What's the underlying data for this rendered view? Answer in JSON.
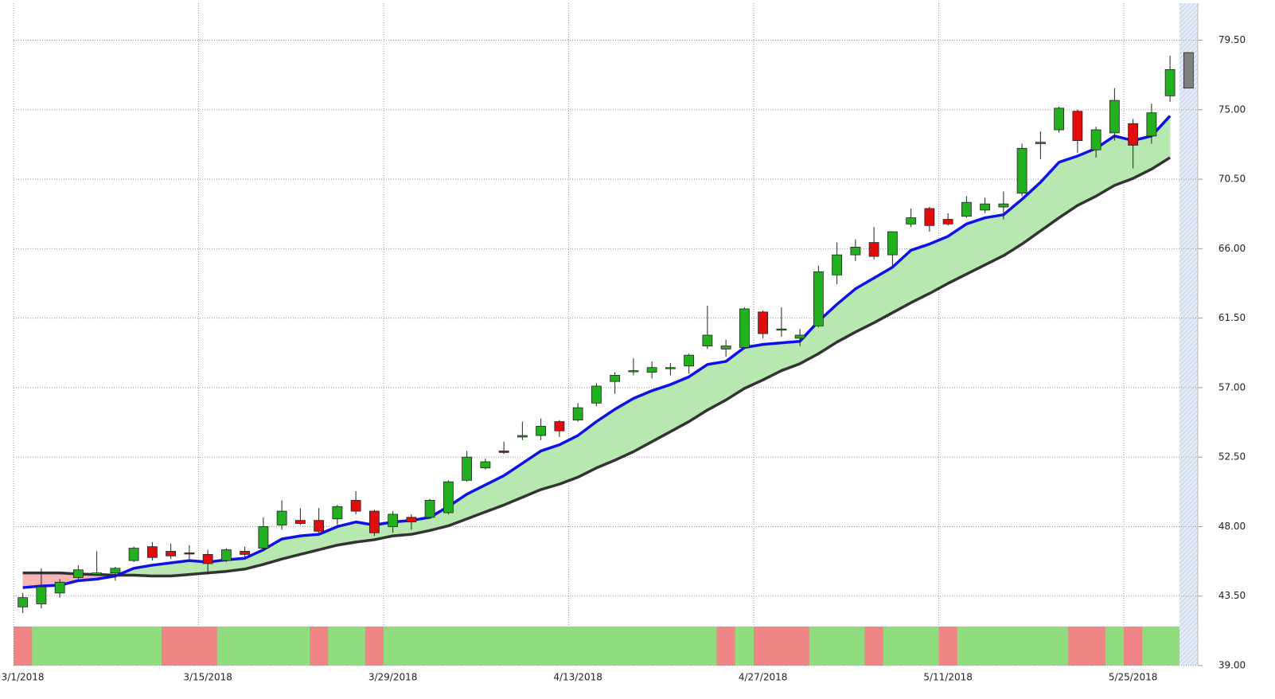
{
  "chart_data": {
    "type": "candlestick",
    "categories": [
      "3/1/2018",
      null,
      null,
      null,
      null,
      null,
      null,
      null,
      null,
      null,
      "3/15/2018",
      null,
      null,
      null,
      null,
      null,
      null,
      null,
      null,
      null,
      "3/29/2018",
      null,
      null,
      null,
      null,
      null,
      null,
      null,
      null,
      null,
      "4/13/2018",
      null,
      null,
      null,
      null,
      null,
      null,
      null,
      null,
      null,
      "4/27/2018",
      null,
      null,
      null,
      null,
      null,
      null,
      null,
      null,
      null,
      "5/11/2018",
      null,
      null,
      null,
      null,
      null,
      null,
      null,
      null,
      null,
      "5/25/2018",
      null,
      null
    ],
    "open": [
      42.8,
      43.0,
      43.7,
      44.7,
      44.9,
      45.0,
      45.8,
      46.7,
      46.4,
      46.3,
      46.2,
      45.8,
      46.4,
      46.6,
      48.1,
      48.4,
      48.4,
      48.5,
      49.7,
      49.0,
      48.0,
      48.6,
      48.6,
      48.9,
      51.0,
      51.8,
      52.9,
      53.8,
      53.9,
      54.8,
      54.9,
      56.0,
      57.4,
      58.05,
      58.0,
      58.3,
      58.4,
      59.7,
      59.5,
      59.6,
      61.9,
      60.8,
      60.2,
      61.0,
      64.3,
      65.6,
      66.4,
      65.6,
      67.6,
      68.6,
      67.9,
      68.1,
      68.5,
      68.7,
      69.6,
      72.8,
      73.7,
      74.9,
      72.4,
      73.5,
      74.1,
      73.3,
      75.9
    ],
    "high": [
      43.7,
      45.3,
      44.6,
      45.5,
      46.4,
      45.4,
      46.7,
      47.0,
      46.9,
      46.8,
      46.5,
      46.6,
      46.7,
      48.6,
      49.7,
      49.2,
      49.2,
      49.4,
      50.3,
      49.1,
      49.0,
      48.8,
      49.8,
      51.0,
      52.9,
      52.4,
      53.5,
      54.8,
      55.0,
      54.9,
      56.0,
      57.3,
      58.0,
      58.9,
      58.7,
      58.6,
      59.2,
      62.3,
      60.1,
      62.2,
      62.0,
      62.2,
      60.8,
      64.9,
      66.4,
      66.6,
      67.4,
      67.1,
      68.6,
      68.7,
      68.3,
      69.4,
      69.3,
      69.7,
      72.8,
      73.6,
      75.2,
      75.0,
      73.9,
      76.4,
      74.4,
      75.4,
      78.5
    ],
    "low": [
      42.4,
      42.7,
      43.4,
      44.6,
      44.8,
      44.5,
      45.7,
      45.8,
      45.9,
      45.9,
      44.9,
      45.7,
      46.0,
      46.4,
      47.8,
      48.1,
      47.6,
      48.1,
      48.8,
      47.4,
      47.6,
      47.8,
      48.5,
      48.8,
      50.9,
      51.7,
      52.7,
      53.6,
      53.6,
      53.8,
      54.8,
      55.8,
      56.6,
      57.8,
      57.6,
      57.8,
      57.9,
      59.5,
      59.0,
      59.5,
      60.2,
      60.3,
      59.7,
      60.9,
      63.7,
      65.2,
      65.3,
      64.9,
      67.4,
      67.1,
      67.5,
      68.0,
      68.3,
      67.9,
      69.4,
      71.8,
      73.5,
      72.2,
      71.9,
      73.0,
      71.2,
      72.8,
      75.5
    ],
    "close": [
      43.4,
      44.1,
      44.4,
      45.2,
      45.0,
      45.3,
      46.6,
      46.0,
      46.1,
      46.25,
      45.6,
      46.5,
      46.2,
      48.0,
      49.0,
      48.2,
      47.7,
      49.3,
      49.0,
      47.6,
      48.8,
      48.3,
      49.7,
      50.9,
      52.5,
      52.2,
      52.8,
      53.9,
      54.5,
      54.2,
      55.7,
      57.1,
      57.8,
      58.1,
      58.3,
      58.3,
      59.1,
      60.4,
      59.7,
      62.1,
      60.5,
      60.8,
      60.4,
      64.5,
      65.6,
      66.1,
      65.5,
      67.1,
      68.0,
      67.5,
      67.6,
      69.0,
      68.9,
      68.9,
      72.5,
      72.9,
      75.1,
      73.0,
      73.7,
      75.6,
      72.7,
      74.8,
      77.6
    ],
    "up_color": "#22b01e",
    "down_color": "#e00d0d",
    "pending_bar": {
      "open": 76.4,
      "high": 78.7,
      "low": 76.4,
      "close": 78.7,
      "color": "#808080"
    },
    "lines": [
      {
        "color": "#1010e8",
        "values": [
          44.05,
          44.15,
          44.2,
          44.5,
          44.6,
          44.8,
          45.3,
          45.5,
          45.65,
          45.8,
          45.7,
          45.85,
          45.95,
          46.5,
          47.2,
          47.4,
          47.5,
          48.0,
          48.3,
          48.1,
          48.3,
          48.4,
          48.6,
          49.3,
          50.1,
          50.7,
          51.3,
          52.1,
          52.9,
          53.3,
          53.9,
          54.8,
          55.6,
          56.3,
          56.8,
          57.2,
          57.7,
          58.5,
          58.7,
          59.6,
          59.8,
          59.9,
          60.0,
          61.3,
          62.4,
          63.4,
          64.1,
          64.8,
          65.9,
          66.3,
          66.8,
          67.6,
          68.0,
          68.2,
          69.2,
          70.3,
          71.6,
          72.0,
          72.5,
          73.3,
          73.0,
          73.3,
          74.6
        ]
      },
      {
        "color": "#333333",
        "values": [
          45.0,
          45.0,
          45.0,
          44.93,
          44.9,
          44.85,
          44.85,
          44.8,
          44.8,
          44.9,
          45.0,
          45.1,
          45.25,
          45.55,
          45.9,
          46.2,
          46.5,
          46.8,
          47.0,
          47.15,
          47.4,
          47.5,
          47.75,
          48.05,
          48.5,
          48.95,
          49.4,
          49.9,
          50.4,
          50.75,
          51.2,
          51.8,
          52.3,
          52.85,
          53.5,
          54.15,
          54.8,
          55.55,
          56.2,
          56.95,
          57.5,
          58.1,
          58.55,
          59.2,
          59.95,
          60.6,
          61.2,
          61.85,
          62.5,
          63.1,
          63.75,
          64.35,
          64.95,
          65.55,
          66.3,
          67.15,
          68.0,
          68.8,
          69.4,
          70.1,
          70.55,
          71.15,
          71.9
        ]
      }
    ],
    "fill_colors": {
      "above": "#b7e8b0",
      "below": "#f5b5b5"
    },
    "signal": [
      "down",
      "up",
      "up",
      "up",
      "up",
      "up",
      "up",
      "up",
      "down",
      "down",
      "down",
      "up",
      "up",
      "up",
      "up",
      "up",
      "down",
      "up",
      "up",
      "down",
      "up",
      "up",
      "up",
      "up",
      "up",
      "up",
      "up",
      "up",
      "up",
      "up",
      "up",
      "up",
      "up",
      "up",
      "up",
      "up",
      "up",
      "up",
      "down",
      "up",
      "down",
      "down",
      "down",
      "up",
      "up",
      "up",
      "down",
      "up",
      "up",
      "up",
      "down",
      "up",
      "up",
      "up",
      "up",
      "up",
      "up",
      "down",
      "down",
      "up",
      "down",
      "up",
      "up"
    ],
    "signal_colors": {
      "up": "#90dd80",
      "down": "#ef8585"
    },
    "ylim": [
      39,
      81.9
    ],
    "yticks": [
      {
        "value": 39,
        "label": "39.00"
      },
      {
        "value": 43.5,
        "label": "43.50"
      },
      {
        "value": 48,
        "label": "48.00"
      },
      {
        "value": 52.5,
        "label": "52.50"
      },
      57,
      {
        "value": 57,
        "label": "57.00"
      },
      {
        "value": 61.5,
        "label": "61.50"
      },
      {
        "value": 66,
        "label": "66.00"
      },
      {
        "value": 70.5,
        "label": "70.50"
      },
      {
        "value": 75,
        "label": "75.00"
      },
      {
        "value": 79.5,
        "label": "79.50"
      }
    ],
    "grid": true
  }
}
